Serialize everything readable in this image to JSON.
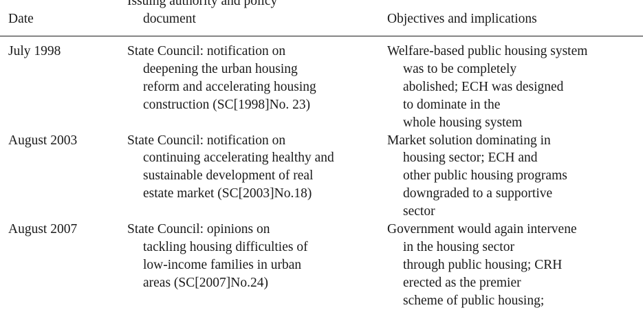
{
  "table": {
    "headers": {
      "date": "Date",
      "authority": [
        "Issuing authority and policy",
        "document"
      ],
      "objectives": "Objectives and implications"
    },
    "rows": [
      {
        "date": "July 1998",
        "authority": [
          "State Council: notification on",
          "deepening the urban housing",
          "reform and accelerating housing",
          "construction (SC[1998]No. 23)"
        ],
        "objectives": [
          "Welfare-based public housing system",
          "was to be completely",
          "abolished; ECH was designed",
          "to dominate in the",
          "whole housing system"
        ]
      },
      {
        "date": "August 2003",
        "authority": [
          "State Council: notification on",
          "continuing accelerating healthy and",
          "sustainable development of real",
          "estate market (SC[2003]No.18)"
        ],
        "objectives": [
          "Market solution dominating in",
          "housing sector; ECH and",
          "other public housing programs",
          "downgraded to a supportive",
          "sector"
        ]
      },
      {
        "date": "August 2007",
        "authority": [
          "State Council: opinions on",
          "tackling housing difficulties of",
          "low-income families in urban",
          "areas (SC[2007]No.24)"
        ],
        "objectives": [
          "Government would again intervene",
          "in the housing sector",
          "through public housing; CRH",
          "erected as the premier",
          "scheme of public housing;"
        ]
      }
    ]
  }
}
